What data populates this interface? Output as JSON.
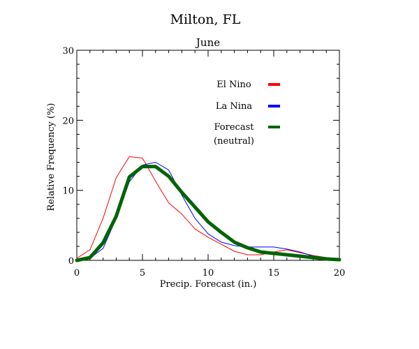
{
  "chart_data": {
    "type": "line",
    "title": "Milton, FL",
    "subtitle": "June",
    "xlabel": "Precip. Forecast (in.)",
    "ylabel": "Relative Frequency (%)",
    "xlim": [
      0,
      20
    ],
    "ylim": [
      0,
      30
    ],
    "xticks": [
      0,
      5,
      10,
      15,
      20
    ],
    "yticks": [
      0,
      10,
      20,
      30
    ],
    "grid": false,
    "legend_position": "top-right",
    "series": [
      {
        "name": "El Nino",
        "color": "#ff0000",
        "x": [
          0,
          1,
          2,
          3,
          4,
          5,
          6,
          7,
          8,
          9,
          10,
          11,
          12,
          13,
          14,
          15,
          16,
          17,
          18,
          19,
          20
        ],
        "y": [
          0.3,
          1.5,
          6.0,
          11.8,
          14.8,
          14.6,
          11.3,
          8.2,
          6.6,
          4.5,
          3.3,
          2.3,
          1.3,
          0.8,
          0.8,
          1.2,
          1.5,
          1.1,
          0.7,
          0.4,
          0.2
        ]
      },
      {
        "name": "La Nina",
        "color": "#0000ff",
        "x": [
          0,
          1,
          2,
          3,
          4,
          5,
          6,
          7,
          8,
          9,
          10,
          11,
          12,
          13,
          14,
          15,
          16,
          17,
          18,
          19,
          20
        ],
        "y": [
          0.0,
          0.3,
          1.7,
          6.0,
          11.2,
          13.6,
          14.0,
          12.9,
          9.3,
          6.0,
          3.8,
          2.6,
          2.1,
          1.9,
          1.9,
          1.9,
          1.6,
          1.2,
          0.6,
          0.4,
          0.2
        ]
      },
      {
        "name": "Forecast (neutral)",
        "legend_lines": [
          "Forecast",
          "(neutral)"
        ],
        "color": "#006400",
        "x": [
          0,
          1,
          2,
          3,
          4,
          5,
          6,
          7,
          8,
          9,
          10,
          11,
          12,
          13,
          14,
          15,
          16,
          17,
          18,
          19,
          20
        ],
        "y": [
          0.0,
          0.4,
          2.5,
          6.3,
          11.9,
          13.4,
          13.4,
          12.0,
          9.7,
          7.6,
          5.5,
          4.0,
          2.6,
          1.8,
          1.2,
          1.0,
          0.8,
          0.6,
          0.4,
          0.2,
          0.1
        ]
      }
    ]
  }
}
